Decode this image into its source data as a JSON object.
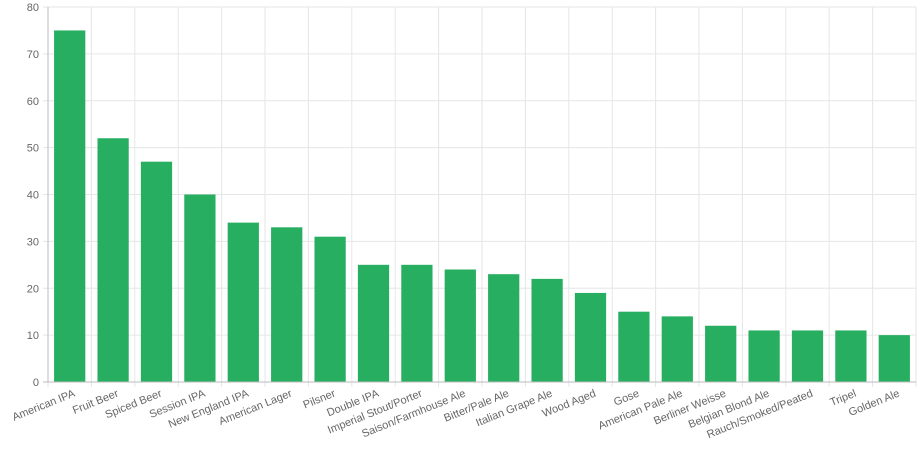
{
  "chart_data": {
    "type": "bar",
    "categories": [
      "American IPA",
      "Fruit Beer",
      "Spiced Beer",
      "Session IPA",
      "New England IPA",
      "American Lager",
      "Pilsner",
      "Double IPA",
      "Imperial Stout/Porter",
      "Saison/Farmhouse Ale",
      "Bitter/Pale Ale",
      "Italian Grape Ale",
      "Wood Aged",
      "Gose",
      "American Pale Ale",
      "Berliner Weisse",
      "Belgian Blond Ale",
      "Rauch/Smoked/Peated",
      "Tripel",
      "Golden Ale"
    ],
    "values": [
      75,
      52,
      47,
      40,
      34,
      33,
      31,
      25,
      25,
      24,
      23,
      22,
      19,
      15,
      14,
      12,
      11,
      11,
      11,
      10
    ],
    "ylim": [
      0,
      80
    ],
    "yticks": [
      0,
      10,
      20,
      30,
      40,
      50,
      60,
      70,
      80
    ],
    "grid": true,
    "colors": {
      "bar": "#27ae60",
      "grid": "#e6e6e6",
      "axis": "#bbbbbb",
      "text": "#666666"
    }
  }
}
